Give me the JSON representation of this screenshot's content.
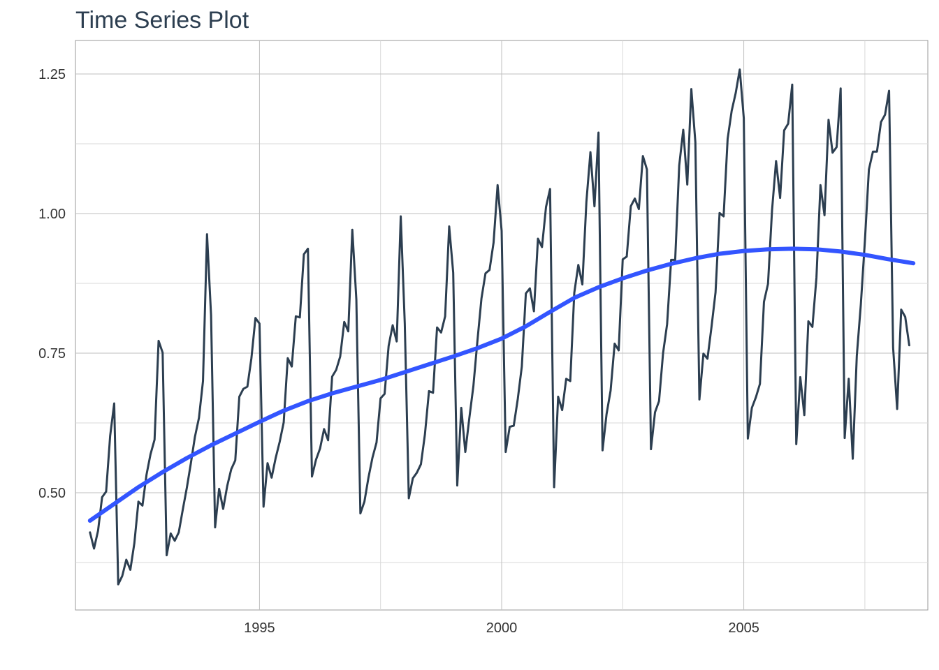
{
  "chart_data": {
    "type": "line",
    "title": "Time Series Plot",
    "xlabel": "",
    "ylabel": "",
    "xlim": [
      1991.2,
      2008.8
    ],
    "ylim": [
      0.29,
      1.31
    ],
    "x_ticks": [
      1995,
      2000,
      2005
    ],
    "x_tick_labels": [
      "1995",
      "2000",
      "2005"
    ],
    "y_ticks": [
      0.5,
      0.75,
      1.0,
      1.25
    ],
    "y_tick_labels": [
      "0.50",
      "0.75",
      "1.00",
      "1.25"
    ],
    "y_minor_ticks": [
      0.375,
      0.625,
      0.875,
      1.125
    ],
    "x_minor_ticks": [
      1997.5,
      2002.5,
      2007.5
    ],
    "grid": true,
    "series": [
      {
        "kind": "raw",
        "color": "#2c3e50",
        "start": [
          1991,
          7
        ],
        "frequency": 12,
        "values": [
          0.429,
          0.4,
          0.432,
          0.492,
          0.502,
          0.602,
          0.66,
          0.336,
          0.351,
          0.38,
          0.362,
          0.41,
          0.484,
          0.477,
          0.532,
          0.569,
          0.595,
          0.772,
          0.751,
          0.388,
          0.427,
          0.414,
          0.429,
          0.47,
          0.509,
          0.553,
          0.6,
          0.634,
          0.7,
          0.963,
          0.818,
          0.438,
          0.507,
          0.471,
          0.512,
          0.542,
          0.558,
          0.672,
          0.686,
          0.69,
          0.741,
          0.813,
          0.803,
          0.475,
          0.553,
          0.527,
          0.562,
          0.591,
          0.626,
          0.741,
          0.726,
          0.816,
          0.814,
          0.927,
          0.937,
          0.529,
          0.559,
          0.579,
          0.614,
          0.594,
          0.708,
          0.72,
          0.744,
          0.806,
          0.789,
          0.971,
          0.846,
          0.463,
          0.484,
          0.527,
          0.563,
          0.59,
          0.669,
          0.677,
          0.763,
          0.8,
          0.771,
          0.995,
          0.803,
          0.49,
          0.526,
          0.536,
          0.551,
          0.605,
          0.682,
          0.679,
          0.796,
          0.787,
          0.816,
          0.977,
          0.894,
          0.513,
          0.652,
          0.573,
          0.634,
          0.691,
          0.772,
          0.848,
          0.893,
          0.899,
          0.948,
          1.051,
          0.969,
          0.573,
          0.618,
          0.62,
          0.668,
          0.726,
          0.857,
          0.866,
          0.825,
          0.955,
          0.94,
          1.012,
          1.044,
          0.51,
          0.672,
          0.648,
          0.704,
          0.7,
          0.858,
          0.908,
          0.873,
          1.021,
          1.11,
          1.013,
          1.145,
          0.576,
          0.641,
          0.683,
          0.767,
          0.755,
          0.918,
          0.923,
          1.013,
          1.027,
          1.008,
          1.103,
          1.079,
          0.578,
          0.644,
          0.664,
          0.75,
          0.802,
          0.917,
          0.917,
          1.086,
          1.15,
          1.052,
          1.223,
          1.128,
          0.667,
          0.749,
          0.74,
          0.797,
          0.859,
          1.001,
          0.995,
          1.134,
          1.184,
          1.216,
          1.258,
          1.171,
          0.597,
          0.652,
          0.671,
          0.695,
          0.842,
          0.874,
          1.006,
          1.094,
          1.028,
          1.149,
          1.161,
          1.231,
          0.587,
          0.707,
          0.639,
          0.807,
          0.797,
          0.885,
          1.051,
          0.997,
          1.168,
          1.109,
          1.119,
          1.224,
          0.598,
          0.704,
          0.561,
          0.745,
          0.837,
          0.95,
          1.079,
          1.111,
          1.111,
          1.164,
          1.177,
          1.22,
          0.76,
          0.65,
          0.828,
          0.815,
          0.764
        ]
      },
      {
        "kind": "smooth",
        "color": "#3355ff",
        "x": [
          1991.5,
          1992,
          1992.5,
          1993,
          1993.5,
          1994,
          1994.5,
          1995,
          1995.5,
          1996,
          1996.5,
          1997,
          1997.5,
          1998,
          1998.5,
          1999,
          1999.5,
          2000,
          2000.5,
          2001,
          2001.5,
          2002,
          2002.5,
          2003,
          2003.5,
          2004,
          2004.5,
          2005,
          2005.5,
          2006,
          2006.5,
          2007,
          2007.5,
          2008,
          2008.5
        ],
        "values": [
          0.45,
          0.48,
          0.51,
          0.537,
          0.562,
          0.585,
          0.606,
          0.627,
          0.647,
          0.664,
          0.678,
          0.69,
          0.702,
          0.716,
          0.73,
          0.744,
          0.759,
          0.776,
          0.798,
          0.824,
          0.849,
          0.868,
          0.884,
          0.898,
          0.91,
          0.92,
          0.928,
          0.933,
          0.936,
          0.937,
          0.936,
          0.932,
          0.926,
          0.918,
          0.911
        ]
      }
    ]
  }
}
